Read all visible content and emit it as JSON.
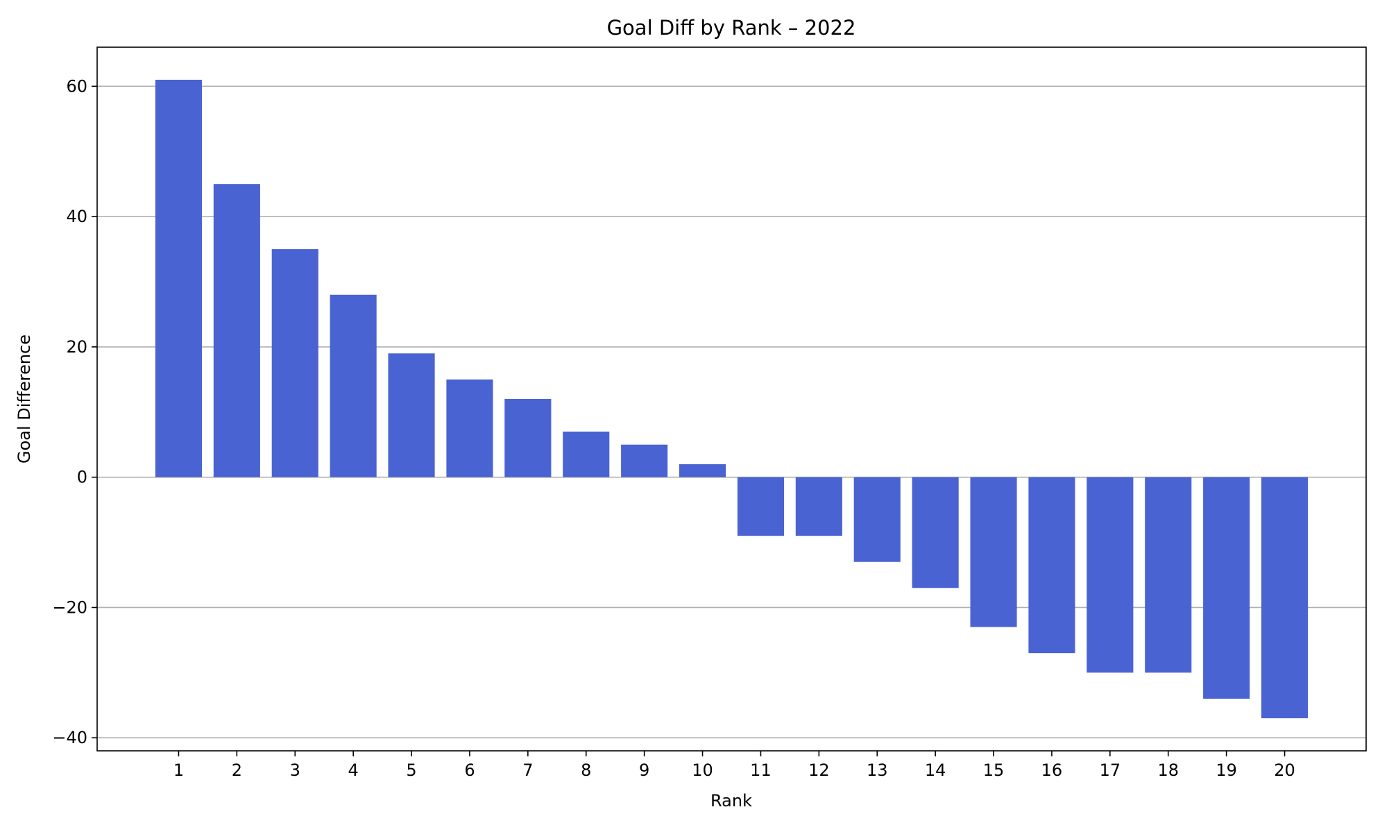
{
  "chart_data": {
    "type": "bar",
    "title": "Goal Diff by Rank – 2022",
    "xlabel": "Rank",
    "ylabel": "Goal Difference",
    "categories": [
      "1",
      "2",
      "3",
      "4",
      "5",
      "6",
      "7",
      "8",
      "9",
      "10",
      "11",
      "12",
      "13",
      "14",
      "15",
      "16",
      "17",
      "18",
      "19",
      "20"
    ],
    "values": [
      61,
      45,
      35,
      28,
      19,
      15,
      12,
      7,
      5,
      2,
      -9,
      -9,
      -13,
      -17,
      -23,
      -27,
      -30,
      -30,
      -34,
      -37
    ],
    "ylim": [
      -42,
      66
    ],
    "yticks": [
      -40,
      -20,
      0,
      20,
      40,
      60
    ],
    "ytick_labels": [
      "−40",
      "−20",
      "0",
      "20",
      "40",
      "60"
    ],
    "grid": "y",
    "bar_color": "#4a63d2",
    "grid_color": "#b0b0b0"
  }
}
